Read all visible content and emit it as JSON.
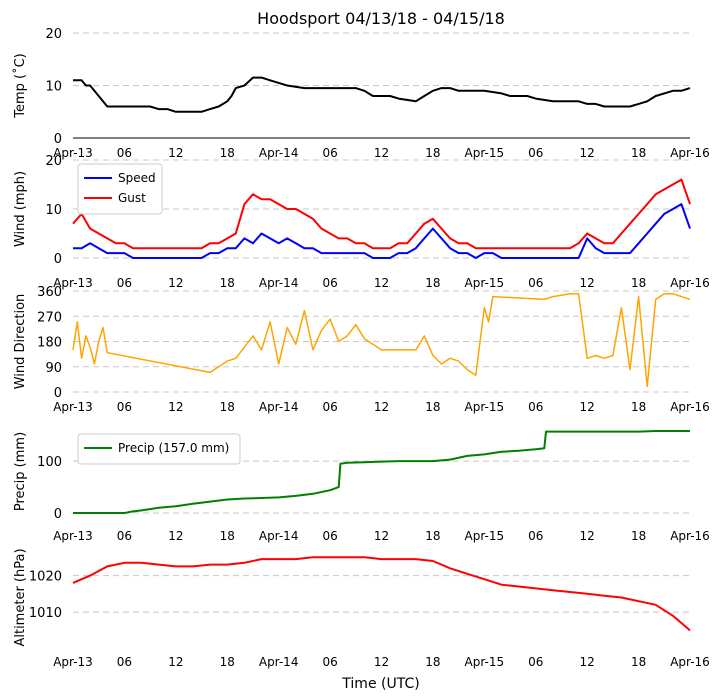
{
  "chart_data": {
    "title": "Hoodsport 04/13/18 - 04/15/18",
    "xlabel": "Time (UTC)",
    "x_domain_hours": [
      0,
      72
    ],
    "x_ticks": [
      {
        "hour": 0,
        "label": "Apr-13"
      },
      {
        "hour": 6,
        "label": "06"
      },
      {
        "hour": 12,
        "label": "12"
      },
      {
        "hour": 18,
        "label": "18"
      },
      {
        "hour": 24,
        "label": "Apr-14"
      },
      {
        "hour": 30,
        "label": "06"
      },
      {
        "hour": 36,
        "label": "12"
      },
      {
        "hour": 42,
        "label": "18"
      },
      {
        "hour": 48,
        "label": "Apr-15"
      },
      {
        "hour": 54,
        "label": "06"
      },
      {
        "hour": 60,
        "label": "12"
      },
      {
        "hour": 66,
        "label": "18"
      },
      {
        "hour": 72,
        "label": "Apr-16"
      }
    ],
    "panels": [
      {
        "id": "temp",
        "type": "line",
        "ylabel": "Temp ($^\\circ$C)",
        "ylabel_display": "Temp (˚C)",
        "ylim": [
          0,
          20
        ],
        "yticks": [
          0,
          10,
          20
        ],
        "series": [
          {
            "name": "Temp",
            "color": "#000000",
            "x": [
              0,
              1,
              1.5,
              2,
              2.5,
              3,
              3.5,
              4,
              5,
              6,
              9,
              10,
              11,
              12,
              14,
              15,
              16,
              17,
              18,
              18.5,
              19,
              20,
              21,
              22,
              23,
              24,
              25,
              27,
              30,
              32,
              33,
              34,
              35,
              36,
              37,
              38,
              40,
              41,
              42,
              43,
              44,
              45,
              46,
              48,
              50,
              51,
              52,
              53,
              54,
              56,
              57,
              58,
              59,
              60,
              61,
              62,
              63,
              64,
              65,
              66,
              67,
              68,
              69,
              70,
              71,
              72
            ],
            "values": [
              11,
              11,
              10,
              10,
              9,
              8,
              7,
              6,
              6,
              6,
              6,
              5.5,
              5.5,
              5,
              5,
              5,
              5.5,
              6,
              7,
              8,
              9.5,
              10,
              11.5,
              11.5,
              11,
              10.5,
              10,
              9.5,
              9.5,
              9.5,
              9.5,
              9,
              8,
              8,
              8,
              7.5,
              7,
              8,
              9,
              9.5,
              9.5,
              9,
              9,
              9,
              8.5,
              8,
              8,
              8,
              7.5,
              7,
              7,
              7,
              7,
              6.5,
              6.5,
              6,
              6,
              6,
              6,
              6.5,
              7,
              8,
              8.5,
              9,
              9,
              9.5
            ]
          }
        ]
      },
      {
        "id": "wind",
        "type": "line",
        "ylabel": "Wind (mph)",
        "ylim": [
          0,
          20
        ],
        "yticks": [
          0,
          10,
          20
        ],
        "legend": "upper-left",
        "series": [
          {
            "name": "Speed",
            "color": "#0000ff",
            "x": [
              0,
              1,
              2,
              3,
              4,
              5,
              6,
              7,
              8,
              9,
              10,
              11,
              12,
              13,
              14,
              15,
              16,
              17,
              18,
              19,
              20,
              21,
              22,
              23,
              24,
              25,
              26,
              27,
              28,
              29,
              30,
              31,
              32,
              33,
              34,
              35,
              36,
              37,
              38,
              39,
              40,
              41,
              42,
              43,
              44,
              45,
              46,
              47,
              48,
              49,
              50,
              51,
              52,
              53,
              54,
              55,
              56,
              57,
              58,
              59,
              60,
              61,
              62,
              63,
              64,
              65,
              66,
              67,
              68,
              69,
              70,
              71,
              72
            ],
            "values": [
              2,
              2,
              3,
              2,
              1,
              1,
              1,
              0,
              0,
              0,
              0,
              0,
              0,
              0,
              0,
              0,
              1,
              1,
              2,
              2,
              4,
              3,
              5,
              4,
              3,
              4,
              3,
              2,
              2,
              1,
              1,
              1,
              1,
              1,
              1,
              0,
              0,
              0,
              1,
              1,
              2,
              4,
              6,
              4,
              2,
              1,
              1,
              0,
              1,
              1,
              0,
              0,
              0,
              0,
              0,
              0,
              0,
              0,
              0,
              0,
              4,
              2,
              1,
              1,
              1,
              1,
              3,
              5,
              7,
              9,
              10,
              11,
              6
            ]
          },
          {
            "name": "Gust",
            "color": "#ff0000",
            "x": [
              0,
              1,
              2,
              3,
              4,
              5,
              6,
              7,
              8,
              9,
              10,
              11,
              12,
              13,
              14,
              15,
              16,
              17,
              18,
              19,
              20,
              21,
              22,
              23,
              24,
              25,
              26,
              27,
              28,
              29,
              30,
              31,
              32,
              33,
              34,
              35,
              36,
              37,
              38,
              39,
              40,
              41,
              42,
              43,
              44,
              45,
              46,
              47,
              48,
              49,
              50,
              51,
              52,
              53,
              54,
              55,
              56,
              57,
              58,
              59,
              60,
              61,
              62,
              63,
              64,
              65,
              66,
              67,
              68,
              69,
              70,
              71,
              72
            ],
            "values": [
              7,
              9,
              6,
              5,
              4,
              3,
              3,
              2,
              2,
              2,
              2,
              2,
              2,
              2,
              2,
              2,
              3,
              3,
              4,
              5,
              11,
              13,
              12,
              12,
              11,
              10,
              10,
              9,
              8,
              6,
              5,
              4,
              4,
              3,
              3,
              2,
              2,
              2,
              3,
              3,
              5,
              7,
              8,
              6,
              4,
              3,
              3,
              2,
              2,
              2,
              2,
              2,
              2,
              2,
              2,
              2,
              2,
              2,
              2,
              3,
              5,
              4,
              3,
              3,
              5,
              7,
              9,
              11,
              13,
              14,
              15,
              16,
              11
            ]
          }
        ]
      },
      {
        "id": "direction",
        "type": "line",
        "ylabel": "Wind Direction",
        "ylim": [
          0,
          360
        ],
        "yticks": [
          0,
          90,
          180,
          270,
          360
        ],
        "series": [
          {
            "name": "Direction",
            "color": "#ffa500",
            "x": [
              0,
              0.5,
              1,
              1.5,
              2,
              2.5,
              3,
              3.5,
              4,
              16,
              17,
              18,
              19,
              20,
              21,
              22,
              23,
              24,
              25,
              26,
              27,
              28,
              29,
              30,
              31,
              32,
              33,
              34,
              35,
              36,
              40,
              41,
              42,
              43,
              44,
              45,
              46,
              47,
              48,
              48.5,
              49,
              55,
              56,
              57,
              58,
              59,
              60,
              61,
              62,
              63,
              64,
              65,
              66,
              67,
              68,
              69,
              70,
              71,
              72
            ],
            "values": [
              150,
              250,
              120,
              200,
              160,
              100,
              180,
              230,
              140,
              70,
              90,
              110,
              120,
              160,
              200,
              150,
              250,
              100,
              230,
              170,
              290,
              150,
              220,
              260,
              180,
              200,
              240,
              190,
              170,
              150,
              150,
              200,
              130,
              100,
              120,
              110,
              80,
              60,
              300,
              250,
              340,
              330,
              340,
              345,
              350,
              350,
              120,
              130,
              120,
              130,
              300,
              80,
              340,
              20,
              330,
              350,
              350,
              340,
              330
            ]
          }
        ]
      },
      {
        "id": "precip",
        "type": "line",
        "ylabel": "Precip (mm)",
        "ylim": [
          0,
          160
        ],
        "yticks": [
          0,
          100
        ],
        "legend": "upper-left",
        "series": [
          {
            "name": "Precip (157.0 mm)",
            "color": "#008000",
            "x": [
              0,
              6,
              7,
              8,
              10,
              12,
              14,
              16,
              18,
              20,
              22,
              24,
              26,
              28,
              30,
              31,
              31.2,
              32,
              34,
              36,
              38,
              40,
              42,
              44,
              46,
              48,
              50,
              52,
              54,
              55,
              55.2,
              56,
              58,
              60,
              62,
              64,
              66,
              68,
              70,
              72
            ],
            "values": [
              0,
              0,
              3,
              5,
              10,
              13,
              18,
              22,
              26,
              28,
              29,
              30,
              33,
              37,
              44,
              50,
              95,
              97,
              98,
              99,
              100,
              100,
              100,
              103,
              110,
              113,
              118,
              120,
              123,
              125,
              157,
              157,
              157,
              157,
              157,
              157,
              157,
              158,
              158,
              158
            ]
          }
        ]
      },
      {
        "id": "altimeter",
        "type": "line",
        "ylabel": "Altimeter (hPa)",
        "ylim": [
          1001,
          1027
        ],
        "yticks": [
          1010,
          1020
        ],
        "series": [
          {
            "name": "Altimeter",
            "color": "#ff0000",
            "x": [
              0,
              2,
              4,
              6,
              8,
              10,
              12,
              14,
              16,
              18,
              20,
              22,
              24,
              26,
              28,
              30,
              32,
              34,
              36,
              38,
              40,
              42,
              44,
              46,
              48,
              50,
              52,
              54,
              56,
              58,
              60,
              62,
              64,
              66,
              68,
              70,
              72
            ],
            "values": [
              1018,
              1020,
              1022.5,
              1023.5,
              1023.5,
              1023,
              1022.5,
              1022.5,
              1023,
              1023,
              1023.5,
              1024.5,
              1024.5,
              1024.5,
              1025,
              1025,
              1025,
              1025,
              1024.5,
              1024.5,
              1024.5,
              1024,
              1022,
              1020.5,
              1019,
              1017.5,
              1017,
              1016.5,
              1016,
              1015.5,
              1015,
              1014.5,
              1014,
              1013,
              1012,
              1009,
              1005
            ]
          }
        ]
      }
    ]
  }
}
